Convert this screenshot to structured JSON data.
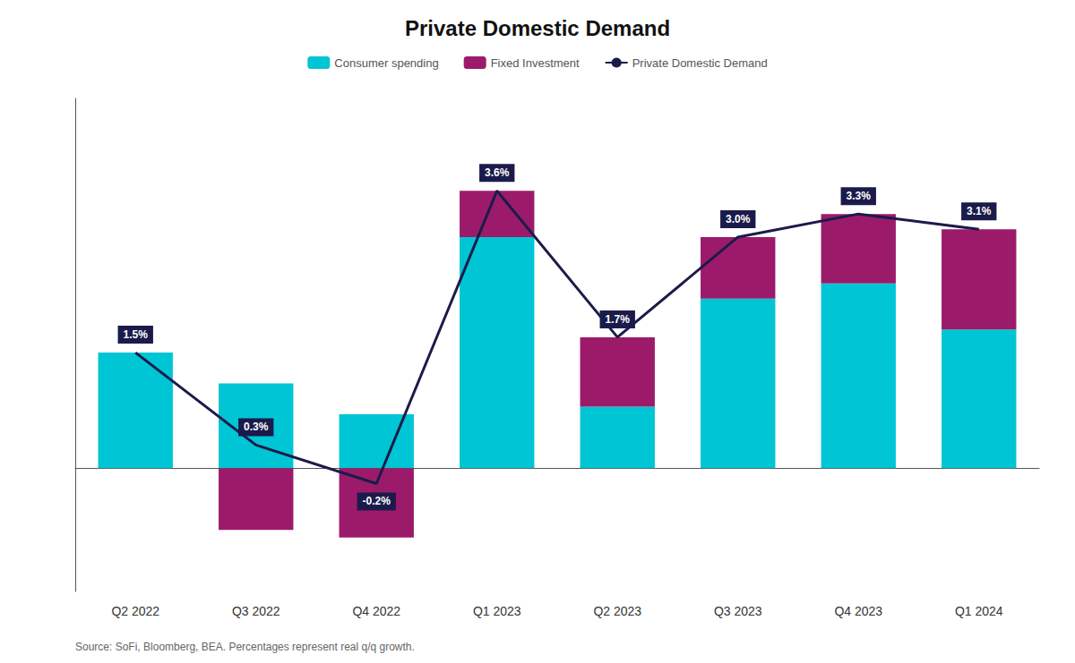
{
  "chart_data": {
    "type": "bar",
    "title": "Private Domestic Demand",
    "categories": [
      "Q2 2022",
      "Q3 2022",
      "Q4 2022",
      "Q1 2023",
      "Q2 2023",
      "Q3 2023",
      "Q4 2023",
      "Q1 2024"
    ],
    "series": [
      {
        "name": "Consumer spending",
        "type": "bar",
        "color": "#00C5D4",
        "values": [
          1.5,
          1.1,
          0.7,
          3.0,
          0.8,
          2.2,
          2.4,
          1.8
        ]
      },
      {
        "name": "Fixed Investment",
        "type": "bar",
        "color": "#9B1B6A",
        "values": [
          0.0,
          -0.8,
          -0.9,
          0.6,
          0.9,
          0.8,
          0.9,
          1.3
        ]
      },
      {
        "name": "Private Domestic Demand",
        "type": "line",
        "color": "#1B1B4B",
        "data_labels": true,
        "values": [
          1.5,
          0.3,
          -0.2,
          3.6,
          1.7,
          3.0,
          3.3,
          3.1
        ],
        "value_labels": [
          "1.5%",
          "0.3%",
          "-0.2%",
          "3.6%",
          "1.7%",
          "3.0%",
          "3.3%",
          "3.1%"
        ]
      }
    ],
    "stacked": true,
    "ylim": [
      -1.6,
      4.8
    ],
    "tick_labels": "x",
    "grid": false,
    "legend": "top",
    "annotations": [
      "Source: SoFi, Bloomberg, BEA. Percentages represent real q/q growth."
    ]
  }
}
